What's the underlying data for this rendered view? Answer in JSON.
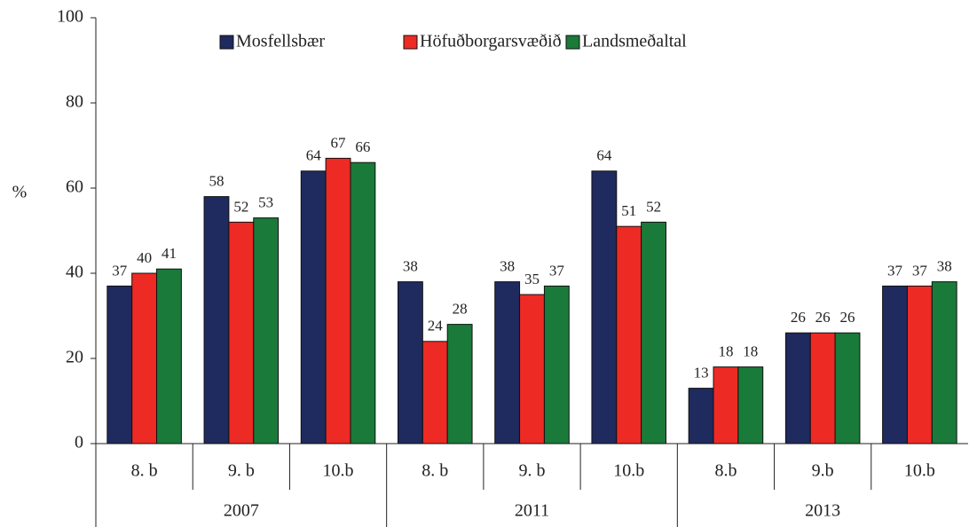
{
  "chart_data": {
    "type": "bar",
    "categories": [
      "8. b",
      "9. b",
      "10.b",
      "8. b",
      "9. b",
      "10.b",
      "8.b",
      "9.b",
      "10.b"
    ],
    "groups": [
      "2007",
      "2011",
      "2013"
    ],
    "ylabel": "%",
    "ylim": [
      0,
      100
    ],
    "yticks": [
      0,
      20,
      40,
      60,
      80,
      100
    ],
    "grid": false,
    "legend": "top",
    "series": [
      {
        "name": "Mosfellsbær",
        "color": "#1f2a5e",
        "values": [
          37,
          58,
          64,
          38,
          38,
          64,
          13,
          26,
          37
        ]
      },
      {
        "name": "Höfuðborgarsvæðið",
        "color": "#ee2a24",
        "values": [
          40,
          52,
          67,
          24,
          35,
          51,
          18,
          26,
          37
        ]
      },
      {
        "name": "Landsmeðaltal",
        "color": "#1a7a3a",
        "values": [
          41,
          53,
          66,
          28,
          37,
          52,
          18,
          26,
          38
        ]
      }
    ]
  }
}
